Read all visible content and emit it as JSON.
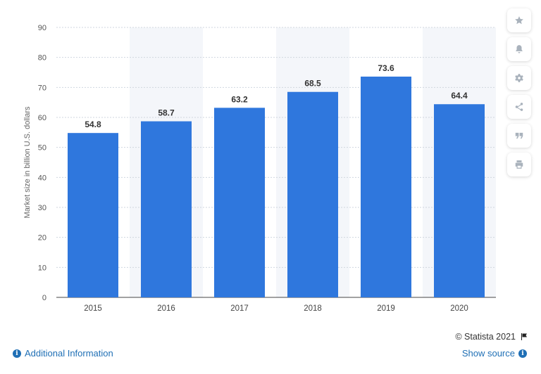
{
  "chart_data": {
    "type": "bar",
    "categories": [
      "2015",
      "2016",
      "2017",
      "2018",
      "2019",
      "2020"
    ],
    "values": [
      54.8,
      58.7,
      63.2,
      68.5,
      73.6,
      64.4
    ],
    "data_labels": [
      "54.8",
      "58.7",
      "63.2",
      "68.5",
      "73.6",
      "64.4"
    ],
    "ylabel": "Market size in billion U.S. dollars",
    "xlabel": "",
    "ylim": [
      0,
      90
    ],
    "yticks": [
      0,
      10,
      20,
      30,
      40,
      50,
      60,
      70,
      80,
      90
    ],
    "grid": true,
    "bar_color": "#2f77dd",
    "alt_band_color": "#f4f6fa"
  },
  "sidebar": {
    "icons": [
      "star-icon",
      "bell-icon",
      "gear-icon",
      "share-icon",
      "quote-icon",
      "print-icon"
    ]
  },
  "footer": {
    "copyright": "© Statista 2021",
    "additional_info": "Additional Information",
    "show_source": "Show source"
  }
}
